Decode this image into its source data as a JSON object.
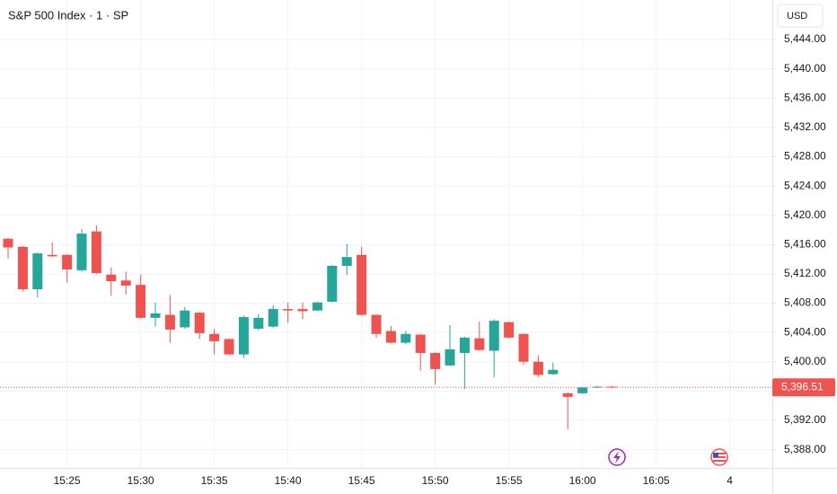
{
  "chart_data": {
    "type": "candlestick",
    "title": "S&P 500 Index · 1 · SP",
    "currency": "USD",
    "x": [
      "15:21",
      "15:22",
      "15:23",
      "15:24",
      "15:25",
      "15:26",
      "15:27",
      "15:28",
      "15:29",
      "15:30",
      "15:31",
      "15:32",
      "15:33",
      "15:34",
      "15:35",
      "15:36",
      "15:37",
      "15:38",
      "15:39",
      "15:40",
      "15:41",
      "15:42",
      "15:43",
      "15:44",
      "15:45",
      "15:46",
      "15:47",
      "15:48",
      "15:49",
      "15:50",
      "15:51",
      "15:52",
      "15:53",
      "15:54",
      "15:55",
      "15:56",
      "15:57",
      "15:58",
      "15:59",
      "16:00",
      "16:01",
      "16:02"
    ],
    "open": [
      5416.8,
      5415.7,
      5409.9,
      5414.6,
      5414.6,
      5412.5,
      5417.8,
      5411.9,
      5411.1,
      5410.5,
      5406.0,
      5406.4,
      5404.7,
      5406.7,
      5403.8,
      5403.1,
      5401.0,
      5404.5,
      5404.8,
      5407.2,
      5407.2,
      5407.0,
      5408.2,
      5413.1,
      5414.6,
      5406.4,
      5404.2,
      5402.6,
      5403.7,
      5401.2,
      5399.5,
      5401.2,
      5403.2,
      5401.5,
      5405.4,
      5403.8,
      5400.0,
      5398.3,
      5395.7,
      5395.7,
      5396.5,
      5396.6
    ],
    "high": [
      5416.9,
      5415.8,
      5414.9,
      5416.3,
      5414.7,
      5418.1,
      5418.6,
      5412.9,
      5412.3,
      5411.9,
      5408.1,
      5409.1,
      5407.5,
      5406.8,
      5404.5,
      5403.2,
      5406.3,
      5406.5,
      5407.7,
      5408.1,
      5408.1,
      5408.2,
      5413.2,
      5416.1,
      5415.7,
      5406.5,
      5404.9,
      5404.2,
      5403.8,
      5401.3,
      5405.0,
      5403.4,
      5405.5,
      5405.8,
      5405.5,
      5403.9,
      5400.9,
      5399.9,
      5395.8,
      5396.6,
      5396.7,
      5396.7
    ],
    "low": [
      5414.1,
      5409.6,
      5408.8,
      5414.3,
      5410.8,
      5412.3,
      5412.0,
      5409.0,
      5409.2,
      5405.9,
      5404.8,
      5402.6,
      5404.5,
      5403.1,
      5401.0,
      5400.9,
      5400.5,
      5404.3,
      5404.6,
      5405.3,
      5405.8,
      5406.9,
      5408.1,
      5411.8,
      5406.3,
      5403.3,
      5402.5,
      5402.4,
      5398.8,
      5396.9,
      5399.4,
      5396.3,
      5401.5,
      5397.9,
      5403.2,
      5399.6,
      5397.9,
      5398.2,
      5390.8,
      5395.6,
      5396.4,
      5396.4
    ],
    "close": [
      5415.6,
      5409.9,
      5414.8,
      5414.4,
      5412.6,
      5417.5,
      5412.1,
      5411.0,
      5410.4,
      5406.0,
      5406.6,
      5404.4,
      5407.0,
      5403.9,
      5402.8,
      5401.0,
      5406.1,
      5406.0,
      5407.2,
      5407.0,
      5406.9,
      5408.1,
      5413.1,
      5414.3,
      5406.4,
      5403.8,
      5402.6,
      5403.8,
      5401.2,
      5399.0,
      5401.7,
      5403.3,
      5401.6,
      5405.6,
      5403.3,
      5400.0,
      5398.2,
      5398.9,
      5395.2,
      5396.5,
      5396.6,
      5396.51
    ],
    "up_color": "#26a69a",
    "down_color": "#ef5350",
    "last_price": {
      "value": 5396.51,
      "label": "5,396.51"
    },
    "ylim": [
      5385.5,
      5449.4
    ],
    "yticks": [
      {
        "value": 5388,
        "label": "5,388.00"
      },
      {
        "value": 5392,
        "label": "5,392.00"
      },
      {
        "value": 5396,
        "label": "5,396.00"
      },
      {
        "value": 5400,
        "label": "5,400.00"
      },
      {
        "value": 5404,
        "label": "5,404.00"
      },
      {
        "value": 5408,
        "label": "5,408.00"
      },
      {
        "value": 5412,
        "label": "5,412.00"
      },
      {
        "value": 5416,
        "label": "5,416.00"
      },
      {
        "value": 5420,
        "label": "5,420.00"
      },
      {
        "value": 5424,
        "label": "5,424.00"
      },
      {
        "value": 5428,
        "label": "5,428.00"
      },
      {
        "value": 5432,
        "label": "5,432.00"
      },
      {
        "value": 5436,
        "label": "5,436.00"
      },
      {
        "value": 5440,
        "label": "5,440.00"
      },
      {
        "value": 5444,
        "label": "5,444.00"
      }
    ],
    "xticks": [
      "15:25",
      "15:30",
      "15:35",
      "15:40",
      "15:45",
      "15:50",
      "15:55",
      "16:00",
      "16:05",
      "4"
    ],
    "grid": true
  }
}
